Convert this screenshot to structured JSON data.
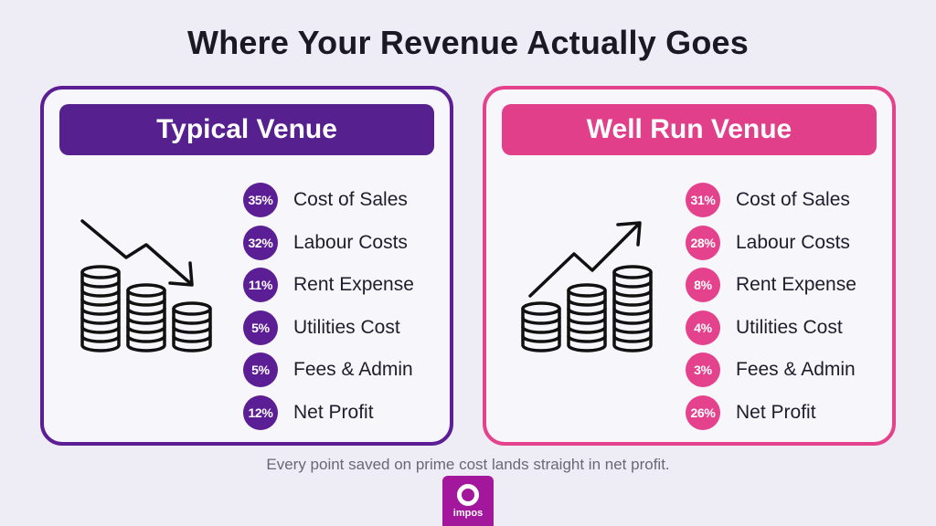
{
  "title": "Where Your Revenue Actually Goes",
  "cards": [
    {
      "heading": "Typical Venue",
      "accent": "#5b1e94",
      "icon": "coins-trend-down-icon",
      "items": [
        {
          "pct": "35%",
          "label": "Cost of Sales"
        },
        {
          "pct": "32%",
          "label": "Labour Costs"
        },
        {
          "pct": "11%",
          "label": "Rent Expense"
        },
        {
          "pct": "5%",
          "label": "Utilities Cost"
        },
        {
          "pct": "5%",
          "label": "Fees & Admin"
        },
        {
          "pct": "12%",
          "label": "Net Profit"
        }
      ]
    },
    {
      "heading": "Well Run Venue",
      "accent": "#e5428e",
      "icon": "coins-trend-up-icon",
      "items": [
        {
          "pct": "31%",
          "label": "Cost of Sales"
        },
        {
          "pct": "28%",
          "label": "Labour Costs"
        },
        {
          "pct": "8%",
          "label": "Rent Expense"
        },
        {
          "pct": "4%",
          "label": "Utilities Cost"
        },
        {
          "pct": "3%",
          "label": "Fees & Admin"
        },
        {
          "pct": "26%",
          "label": "Net Profit"
        }
      ]
    }
  ],
  "footer": "Every point saved on prime cost lands straight in net profit.",
  "logo": {
    "text": "impos",
    "color": "#a2179c"
  }
}
